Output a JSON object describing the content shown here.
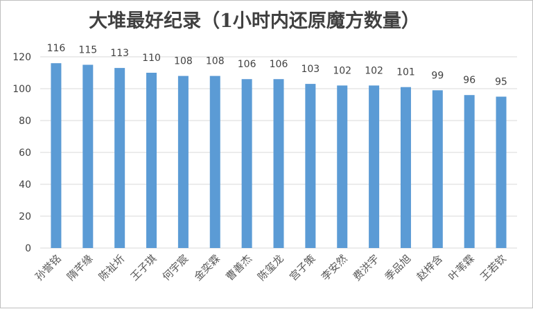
{
  "chart_data": {
    "type": "bar",
    "title": "大堆最好纪录（1小时内还原魔方数量）",
    "xlabel": "",
    "ylabel": "",
    "categories": [
      "孙誉铭",
      "隋芊缘",
      "陈祉圻",
      "王子琪",
      "何宇宸",
      "金奕霖",
      "曹善杰",
      "陈玺龙",
      "宫子策",
      "李安然",
      "费洪宇",
      "季品旭",
      "赵梓含",
      "叶苇霖",
      "王若钦"
    ],
    "values": [
      116,
      115,
      113,
      110,
      108,
      108,
      106,
      106,
      103,
      102,
      102,
      101,
      99,
      96,
      95
    ],
    "ylim": [
      0,
      120
    ],
    "yticks": [
      0,
      20,
      40,
      60,
      80,
      100,
      120
    ],
    "grid": true,
    "legend": "none",
    "data_labels": true,
    "colors": {
      "bar": "#5b9bd5",
      "grid": "#d9d9d9",
      "text": "#404040"
    }
  }
}
